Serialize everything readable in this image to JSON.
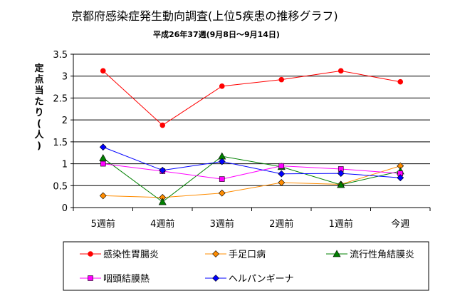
{
  "chart_data": {
    "type": "line",
    "title": "京都府感染症発生動向調査(上位5疾患の推移グラフ)",
    "subtitle": "平成26年37週(9月8日～9月14日)",
    "ylabel": "定点当たり(人)",
    "xlabel": "",
    "categories": [
      "5週前",
      "4週前",
      "3週前",
      "2週前",
      "1週前",
      "今週"
    ],
    "ylim": [
      0,
      3.5
    ],
    "yticks": [
      "0",
      "0.5",
      "1",
      "1.5",
      "2",
      "2.5",
      "3",
      "3.5"
    ],
    "grid": true,
    "legend_position": "bottom",
    "series": [
      {
        "name": "感染性胃腸炎",
        "values": [
          3.12,
          1.88,
          2.77,
          2.92,
          3.12,
          2.87
        ],
        "color": "#ff0000",
        "marker": "circle"
      },
      {
        "name": "手足口病",
        "values": [
          0.27,
          0.23,
          0.33,
          0.57,
          0.53,
          0.95
        ],
        "color": "#ff8c00",
        "marker": "diamond"
      },
      {
        "name": "流行性角結膜炎",
        "values": [
          1.13,
          0.13,
          1.17,
          0.93,
          0.52,
          0.83
        ],
        "color": "#008000",
        "marker": "triangle"
      },
      {
        "name": "咽頭結膜熱",
        "values": [
          1.0,
          0.83,
          0.65,
          0.95,
          0.88,
          0.78
        ],
        "color": "#ff00ff",
        "marker": "square"
      },
      {
        "name": "ヘルパンギーナ",
        "values": [
          1.38,
          0.85,
          1.05,
          0.77,
          0.78,
          0.68
        ],
        "color": "#0000ff",
        "marker": "diamond"
      }
    ]
  }
}
